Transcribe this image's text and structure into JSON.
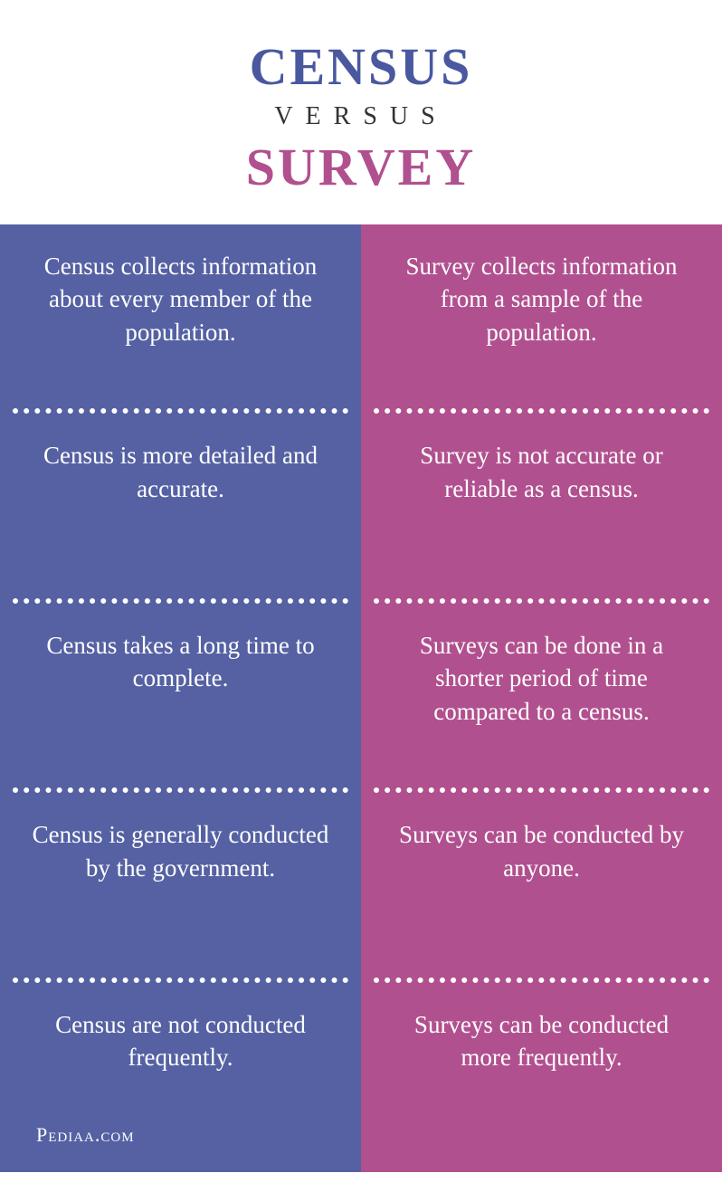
{
  "header": {
    "top": "CENSUS",
    "mid": "VERSUS",
    "bottom": "SURVEY",
    "top_color": "#49589f",
    "bottom_color": "#b1508f",
    "mid_color": "#333333"
  },
  "columns": {
    "left": {
      "bg_color": "#5561a3",
      "items": [
        "Census collects information about every member of the population.",
        "Census is more detailed and accurate.",
        "Census takes a long time to complete.",
        "Census is generally conducted by the government.",
        "Census are not conducted frequently."
      ]
    },
    "right": {
      "bg_color": "#b1508f",
      "items": [
        "Survey collects information from a sample of the population.",
        "Survey is not accurate or reliable as a census.",
        "Surveys can be done in a shorter period of time compared to a census.",
        "Surveys can be conducted by anyone.",
        "Surveys can be conducted more frequently."
      ]
    }
  },
  "source": "Pediaa.com",
  "style": {
    "body_fontsize": 27,
    "text_color": "#ffffff",
    "divider_color": "#ffffff",
    "title_top_fontsize": 58,
    "title_mid_fontsize": 28,
    "title_bottom_fontsize": 58
  }
}
